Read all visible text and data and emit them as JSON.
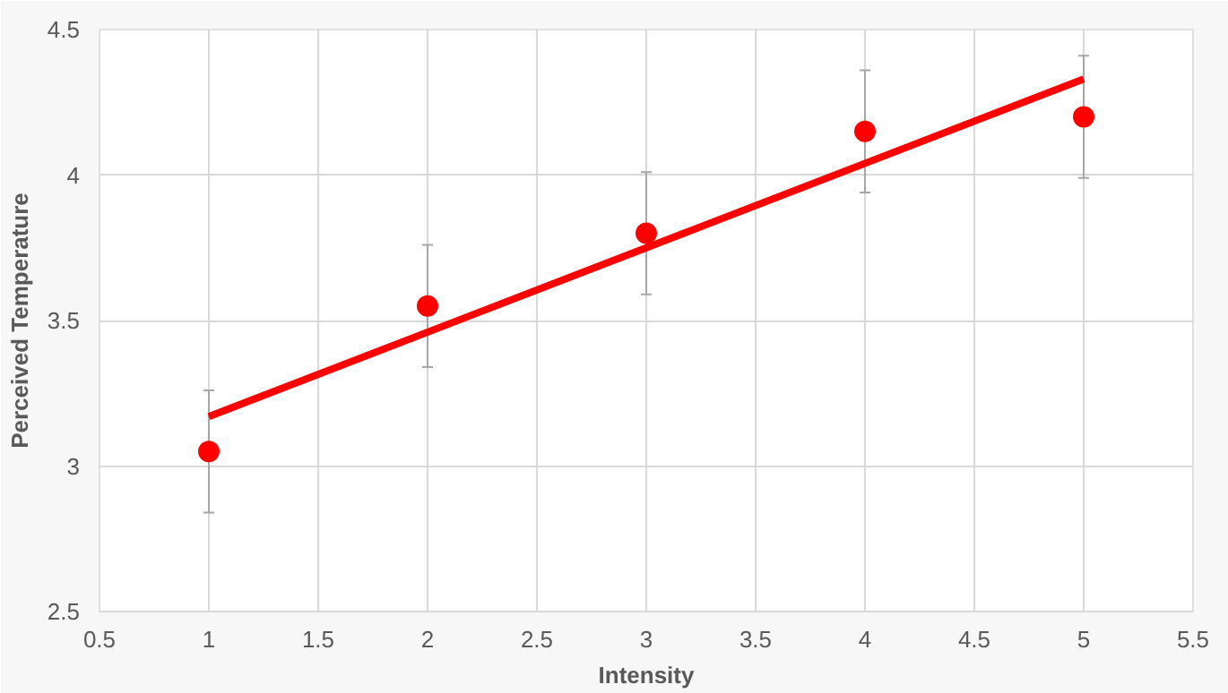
{
  "chart_data": {
    "type": "scatter",
    "xlabel": "Intensity",
    "ylabel": "Perceived Temperature",
    "xlim": [
      0.5,
      5.5
    ],
    "xticks": [
      0.5,
      1,
      1.5,
      2,
      2.5,
      3,
      3.5,
      4,
      4.5,
      5,
      5.5
    ],
    "ylim": [
      2.5,
      4.5
    ],
    "yticks": [
      2.5,
      3,
      3.5,
      4,
      4.5
    ],
    "grid": true,
    "marker": "circle",
    "x": [
      1,
      2,
      3,
      4,
      5
    ],
    "series": [
      {
        "color": "#ff0000",
        "values": [
          3.05,
          3.55,
          3.8,
          4.15,
          4.2
        ],
        "errors": [
          0.21,
          0.21,
          0.21,
          0.21,
          0.21
        ]
      },
      {
        "type": "line",
        "color": "#ff0000",
        "x": [
          1,
          5
        ],
        "values": [
          3.17,
          4.33
        ],
        "line_style": "solid",
        "marker": "none"
      }
    ]
  }
}
